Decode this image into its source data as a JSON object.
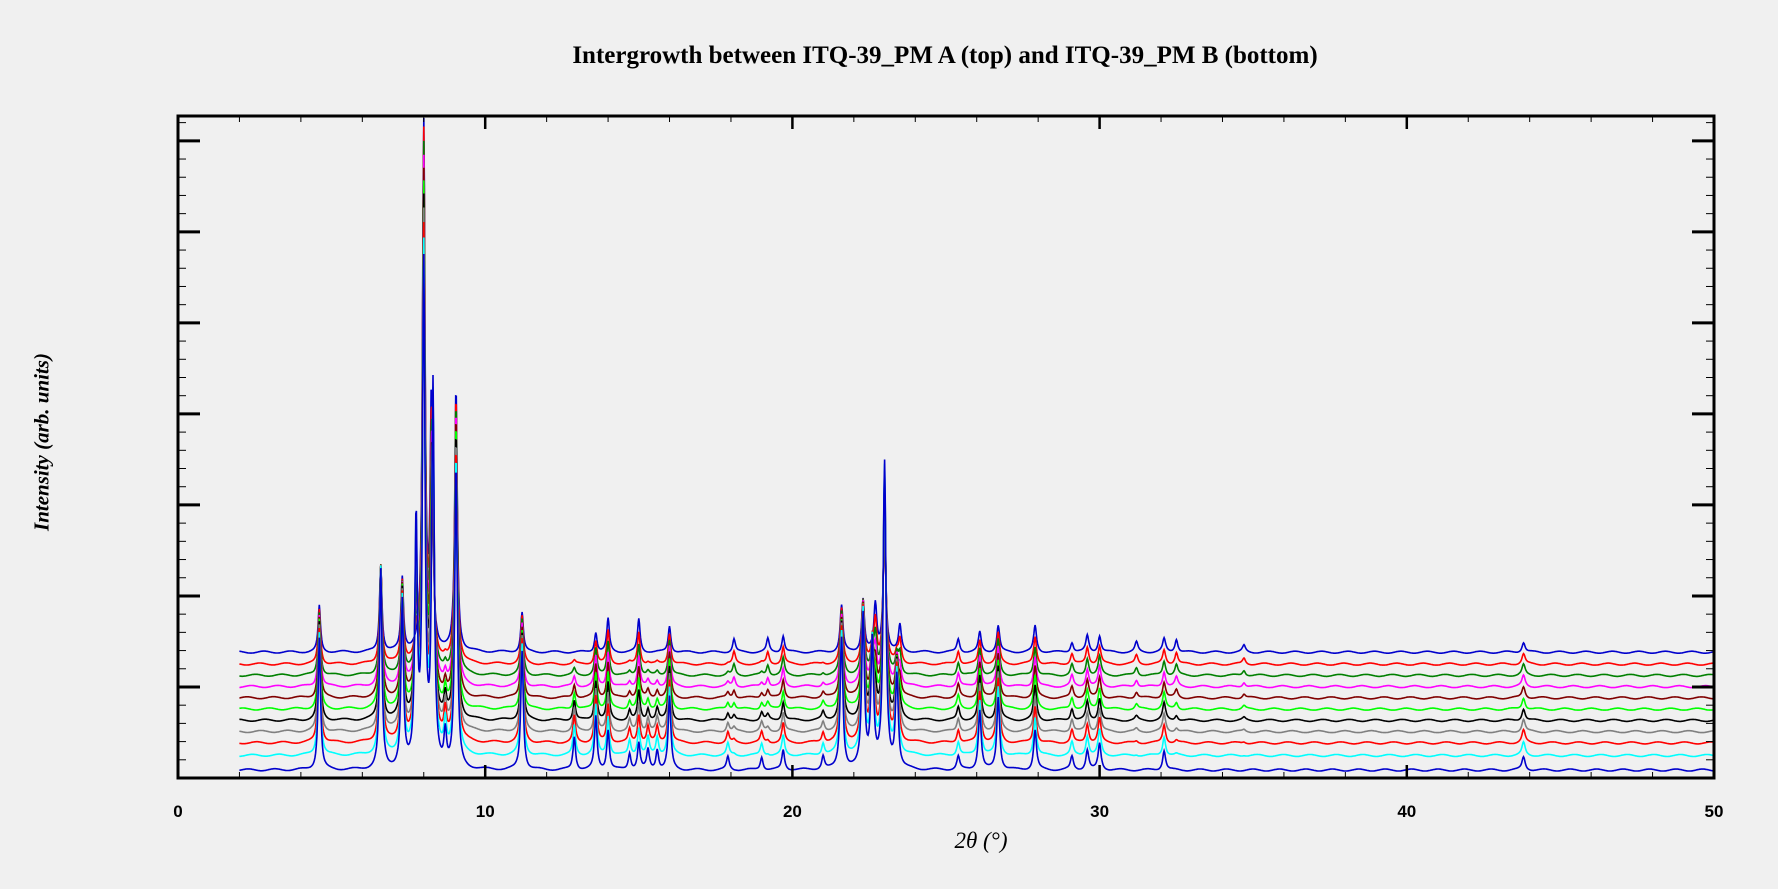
{
  "chart_data": {
    "type": "line",
    "title": "Intergrowth between ITQ-39_PM A (top) and ITQ-39_PM B (bottom)",
    "xlabel": "2θ (°)",
    "ylabel": "Intensity (arb. units)",
    "xlim": [
      0,
      50
    ],
    "ylim": [
      0,
      100
    ],
    "x_ticks": [
      0,
      10,
      20,
      30,
      40,
      50
    ],
    "x_range_data": [
      2,
      50
    ],
    "y_ticks_labeled": false,
    "grid": false,
    "legend": "none",
    "series": [
      {
        "color": "#0000cc",
        "offset": 19,
        "mix": 0.0
      },
      {
        "color": "#ff0000",
        "offset": 17.2,
        "mix": 0.1
      },
      {
        "color": "#008000",
        "offset": 15.5,
        "mix": 0.2
      },
      {
        "color": "#ff00ff",
        "offset": 13.8,
        "mix": 0.3
      },
      {
        "color": "#800000",
        "offset": 12.1,
        "mix": 0.4
      },
      {
        "color": "#00ff00",
        "offset": 10.4,
        "mix": 0.5
      },
      {
        "color": "#000000",
        "offset": 8.7,
        "mix": 0.6
      },
      {
        "color": "#808080",
        "offset": 7.0,
        "mix": 0.7
      },
      {
        "color": "#ff0000",
        "offset": 5.3,
        "mix": 0.8
      },
      {
        "color": "#00ffff",
        "offset": 3.4,
        "mix": 0.9
      },
      {
        "color": "#0000cc",
        "offset": 1.2,
        "mix": 1.0
      }
    ],
    "peaks_phase_A": [
      [
        4.6,
        7
      ],
      [
        6.6,
        13
      ],
      [
        7.3,
        11
      ],
      [
        8.0,
        80
      ],
      [
        8.25,
        38
      ],
      [
        9.05,
        40
      ],
      [
        11.2,
        6
      ],
      [
        13.6,
        3
      ],
      [
        14.0,
        5
      ],
      [
        15.0,
        5
      ],
      [
        16.0,
        4
      ],
      [
        18.1,
        2
      ],
      [
        19.2,
        2
      ],
      [
        19.7,
        2.5
      ],
      [
        21.6,
        7
      ],
      [
        22.3,
        8
      ],
      [
        22.7,
        7
      ],
      [
        23.0,
        18
      ],
      [
        23.5,
        4
      ],
      [
        25.4,
        2
      ],
      [
        26.1,
        3
      ],
      [
        26.7,
        4
      ],
      [
        27.9,
        4
      ],
      [
        29.1,
        1.5
      ],
      [
        29.6,
        2.5
      ],
      [
        30.0,
        2.5
      ],
      [
        31.2,
        1.5
      ],
      [
        32.1,
        2
      ],
      [
        32.5,
        2
      ],
      [
        34.7,
        1
      ],
      [
        43.8,
        1.5
      ]
    ],
    "peaks_phase_B": [
      [
        4.6,
        20
      ],
      [
        6.6,
        30
      ],
      [
        7.3,
        25
      ],
      [
        7.75,
        37
      ],
      [
        8.0,
        75
      ],
      [
        8.3,
        57
      ],
      [
        8.7,
        5
      ],
      [
        9.05,
        46
      ],
      [
        11.2,
        18
      ],
      [
        12.9,
        5
      ],
      [
        13.6,
        8
      ],
      [
        14.0,
        6
      ],
      [
        14.7,
        2.5
      ],
      [
        15.0,
        4
      ],
      [
        15.3,
        3
      ],
      [
        15.6,
        3
      ],
      [
        16.0,
        11
      ],
      [
        17.9,
        2
      ],
      [
        19.0,
        2
      ],
      [
        19.7,
        3
      ],
      [
        21.0,
        2
      ],
      [
        21.6,
        20
      ],
      [
        22.3,
        23
      ],
      [
        22.6,
        19
      ],
      [
        23.0,
        46
      ],
      [
        23.4,
        14
      ],
      [
        25.4,
        2
      ],
      [
        26.1,
        9
      ],
      [
        26.7,
        11
      ],
      [
        27.9,
        6
      ],
      [
        29.1,
        2
      ],
      [
        29.6,
        3
      ],
      [
        30.0,
        4
      ],
      [
        32.1,
        3
      ],
      [
        43.8,
        2
      ]
    ]
  }
}
